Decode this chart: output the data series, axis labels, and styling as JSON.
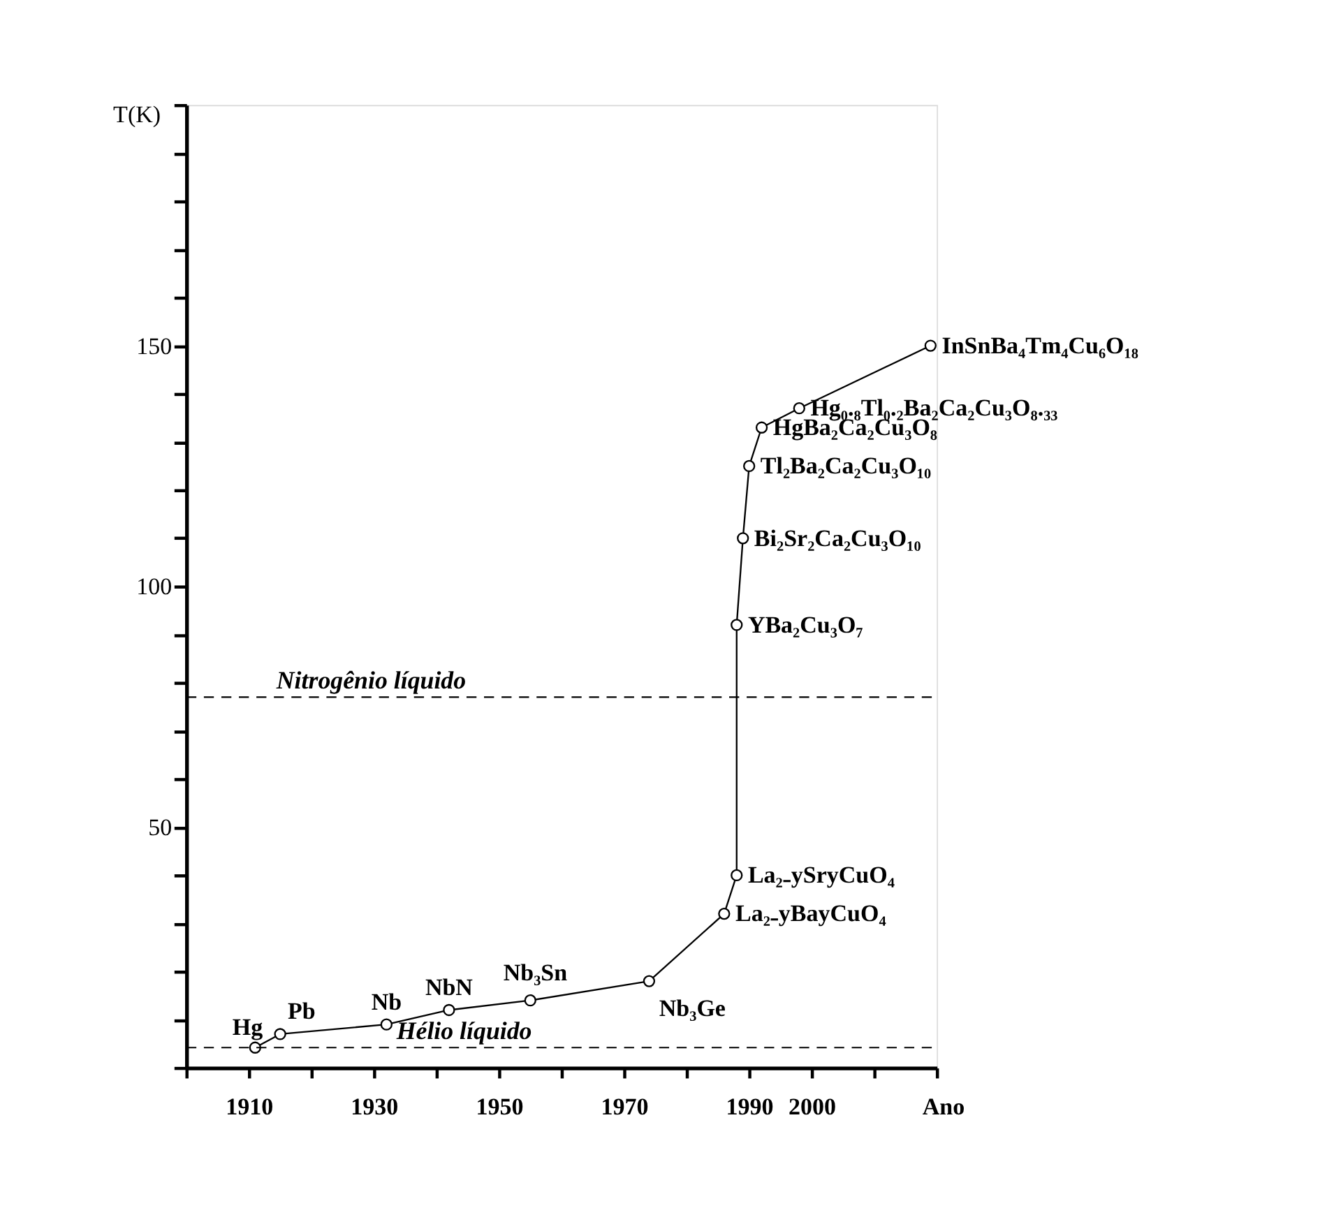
{
  "chart_data": {
    "type": "line",
    "xlabel": "Ano",
    "ylabel": "T(K)",
    "x": [
      1911,
      1915,
      1932,
      1942,
      1955,
      1974,
      1986,
      1988,
      1988,
      1989,
      1990,
      1992,
      1998,
      2019
    ],
    "series": [
      {
        "color": "#000000",
        "values": [
          4.2,
          7,
          9,
          12,
          14,
          18,
          32,
          40,
          92,
          110,
          125,
          133,
          137,
          150
        ]
      }
    ],
    "marker": "circle",
    "line_style": "solid",
    "grid": false,
    "xlim": [
      1900,
      2020
    ],
    "xticks": [
      {
        "value": 1900,
        "label": null
      },
      1910,
      {
        "value": 1920,
        "label": null
      },
      1930,
      {
        "value": 1940,
        "label": null
      },
      1950,
      {
        "value": 1960,
        "label": null
      },
      1970,
      {
        "value": 1980,
        "label": null
      },
      1990,
      2000,
      {
        "value": 2010,
        "label": null
      },
      {
        "value": 2020,
        "label": null
      }
    ],
    "ylim": [
      0,
      200
    ],
    "yticks": [
      {
        "value": 0,
        "label": null
      },
      {
        "value": 10,
        "label": null
      },
      {
        "value": 20,
        "label": null
      },
      {
        "value": 30,
        "label": null
      },
      {
        "value": 40,
        "label": null
      },
      50,
      {
        "value": 60,
        "label": null
      },
      {
        "value": 70,
        "label": null
      },
      {
        "value": 80,
        "label": null
      },
      {
        "value": 90,
        "label": null
      },
      100,
      {
        "value": 110,
        "label": null
      },
      {
        "value": 120,
        "label": null
      },
      {
        "value": 130,
        "label": null
      },
      {
        "value": 140,
        "label": null
      },
      150,
      {
        "value": 160,
        "label": null
      },
      {
        "value": 170,
        "label": null
      },
      {
        "value": 180,
        "label": null
      },
      {
        "value": 190,
        "label": null
      },
      {
        "value": 200,
        "label": null
      }
    ],
    "ref_lines": [
      {
        "axis": "y",
        "value": 77,
        "label": "Nitrogênio líquido",
        "line_style": "dashed",
        "color": "#000000"
      },
      {
        "axis": "y",
        "value": 4.2,
        "label": "Hélio líquido",
        "line_style": "dashed",
        "color": "#000000"
      }
    ],
    "annotations": [
      {
        "text": "Hg",
        "x": 1911,
        "y": 4.2
      },
      {
        "text": "Pb",
        "x": 1915,
        "y": 7
      },
      {
        "text": "Nb",
        "x": 1932,
        "y": 9
      },
      {
        "text": "NbN",
        "x": 1942,
        "y": 12
      },
      {
        "text": "Nb₃Sn",
        "x": 1955,
        "y": 14
      },
      {
        "text": "Nb₃Ge",
        "x": 1974,
        "y": 18
      },
      {
        "text": "La₂₋yBayCuO₄",
        "x": 1986,
        "y": 32
      },
      {
        "text": "La₂₋ySryCuO₄",
        "x": 1988,
        "y": 40
      },
      {
        "text": "YBa₂Cu₃O₇",
        "x": 1988,
        "y": 92
      },
      {
        "text": "Bi₂Sr₂Ca₂Cu₃O₁₀",
        "x": 1989,
        "y": 110
      },
      {
        "text": "Tl₂Ba₂Ca₂Cu₃O₁₀",
        "x": 1990,
        "y": 125
      },
      {
        "text": "HgBa₂Ca₂Cu₃O₈",
        "x": 1992,
        "y": 133
      },
      {
        "text": "Hg₀.₈Tl₀.₂Ba₂Ca₂Cu₃O₈.₃₃",
        "x": 1998,
        "y": 137
      },
      {
        "text": "InSnBa₄Tm₄Cu₆O₁₈",
        "x": 2019,
        "y": 150
      }
    ]
  }
}
